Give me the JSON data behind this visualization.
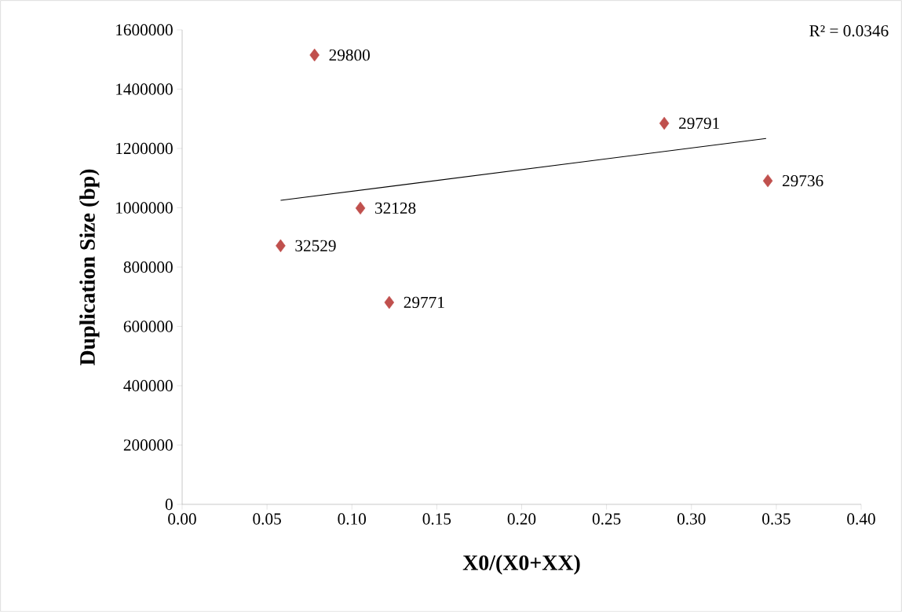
{
  "chart_data": {
    "type": "scatter",
    "xlabel": "X0/(X0+XX)",
    "ylabel": "Duplication Size (bp)",
    "xlim": [
      0,
      0.4
    ],
    "ylim": [
      0,
      1600000
    ],
    "xticks": [
      {
        "value": 0,
        "label": "0.00"
      },
      {
        "value": 0.05,
        "label": "0.05"
      },
      {
        "value": 0.1,
        "label": "0.10"
      },
      {
        "value": 0.15,
        "label": "0.15"
      },
      {
        "value": 0.2,
        "label": "0.20"
      },
      {
        "value": 0.25,
        "label": "0.25"
      },
      {
        "value": 0.3,
        "label": "0.30"
      },
      {
        "value": 0.35,
        "label": "0.35"
      },
      {
        "value": 0.4,
        "label": "0.40"
      }
    ],
    "yticks": [
      0,
      200000,
      400000,
      600000,
      800000,
      1000000,
      1200000,
      1400000,
      1600000
    ],
    "series": [
      {
        "color": "#c0504d",
        "marker": "diamond",
        "x": [
          0.078,
          0.284,
          0.345,
          0.105,
          0.058,
          0.122
        ],
        "values": [
          1515000,
          1285000,
          1091000,
          999000,
          872000,
          681000
        ]
      },
      {
        "type": "line",
        "color": "#000000",
        "marker": "none",
        "x": [
          0.058,
          0.344
        ],
        "values": [
          1025000,
          1234000
        ]
      }
    ],
    "annotations": [
      {
        "text": "29800",
        "x": 0.078,
        "y": 1515000
      },
      {
        "text": "29791",
        "x": 0.284,
        "y": 1285000
      },
      {
        "text": "29736",
        "x": 0.345,
        "y": 1091000
      },
      {
        "text": "32128",
        "x": 0.105,
        "y": 999000
      },
      {
        "text": "32529",
        "x": 0.058,
        "y": 872000
      },
      {
        "text": "29771",
        "x": 0.122,
        "y": 681000
      },
      "R² = 0.0346"
    ]
  }
}
